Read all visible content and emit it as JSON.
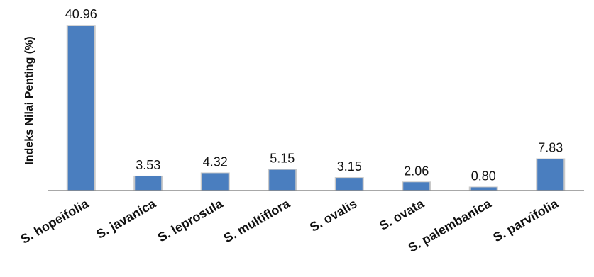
{
  "chart_data": {
    "type": "bar",
    "title": "",
    "xlabel": "",
    "ylabel": "Indeks Nilai Penting (%)",
    "categories": [
      "S. hopeifolia",
      "S. javanica",
      "S. leprosula",
      "S. multiflora",
      "S. ovalis",
      "S. ovata",
      "S. palembanica",
      "S. parvifolia"
    ],
    "values": [
      40.96,
      3.53,
      4.32,
      5.15,
      3.15,
      2.06,
      0.8,
      7.83
    ],
    "data_labels": [
      "40.96",
      "3.53",
      "4.32",
      "5.15",
      "3.15",
      "2.06",
      "0.80",
      "7.83"
    ],
    "ylim": [
      0,
      41
    ],
    "grid": false,
    "legend": "none",
    "bar_color": "#4a7ebf",
    "bar_shadow_color": "#c9c9c9",
    "axis_color": "#8c8c8c"
  }
}
